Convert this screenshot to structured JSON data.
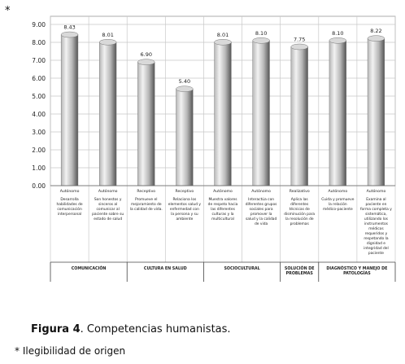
{
  "marker": "*",
  "chart_data": {
    "type": "bar",
    "ylim": [
      0,
      9
    ],
    "yticks": [
      "0.00",
      "1.00",
      "2.00",
      "3.00",
      "4.00",
      "5.00",
      "6.00",
      "7.00",
      "8.00",
      "9.00"
    ],
    "grid": true,
    "categories": [
      {
        "tipo": "Autónomo",
        "desc": [
          "Desarrolla",
          "habilidades de",
          "comunicación",
          "interpersonal"
        ]
      },
      {
        "tipo": "Autónomo",
        "desc": [
          "Son honestos y",
          "sinceros al",
          "comunicar al",
          "paciente sobre su",
          "estado de salud"
        ]
      },
      {
        "tipo": "Receptivo",
        "desc": [
          "Promueve el",
          "mejoramiento de",
          "la calidad de vida."
        ]
      },
      {
        "tipo": "Receptivo",
        "desc": [
          "Relaciona los",
          "elementos salud y",
          "enfermedad con",
          "la persona y su",
          "ambiente"
        ]
      },
      {
        "tipo": "Autónomo",
        "desc": [
          "Muestra valores",
          "de respeto hacia",
          "las diferentes",
          "culturas y la",
          "multicultural"
        ]
      },
      {
        "tipo": "Autónomo",
        "desc": [
          "Interactúa con",
          "diferentes grupos",
          "sociales para",
          "promover la",
          "salud y la calidad",
          "de vida"
        ]
      },
      {
        "tipo": "Realizativo",
        "desc": [
          "Aplica las",
          "diferentes",
          "técnicas de",
          "disminución para",
          "la resolución de",
          "problemas"
        ]
      },
      {
        "tipo": "Autónomo",
        "desc": [
          "Cuida y promueve",
          "la relación",
          "médico-paciente"
        ]
      },
      {
        "tipo": "Autónomo",
        "desc": [
          "Examina al",
          "paciente en",
          "forma completa y",
          "sistemática,",
          "utilizando los",
          "instrumentos",
          "médicos",
          "requeridos y",
          "respetando la",
          "dignidad e",
          "integridad del",
          "paciente"
        ]
      }
    ],
    "values": [
      8.43,
      8.01,
      6.9,
      5.4,
      8.01,
      8.1,
      7.75,
      8.1,
      8.22
    ],
    "value_labels": [
      "8.43",
      "8.01",
      "6.90",
      "5.40",
      "8.01",
      "8.10",
      "7.75",
      "8.10",
      "8.22"
    ],
    "groups": [
      {
        "label": [
          "COMUNICACIÓN"
        ],
        "span": [
          0,
          1
        ]
      },
      {
        "label": [
          "CULTURA EN SALUD"
        ],
        "span": [
          2,
          3
        ]
      },
      {
        "label": [
          "SOCIOCULTURAL"
        ],
        "span": [
          4,
          5
        ]
      },
      {
        "label": [
          "SOLUCIÓN DE",
          "PROBLEMAS"
        ],
        "span": [
          6,
          6
        ]
      },
      {
        "label": [
          "DIAGNÓSTICO Y MANEJO DE",
          "PATOLOGÍAS"
        ],
        "span": [
          7,
          8
        ]
      }
    ],
    "colors": {
      "bar_light": "#f2f2f2",
      "bar_mid": "#b8b8b8",
      "bar_dark": "#555555",
      "grid": "#c8c8c8",
      "frame": "#999999",
      "text": "#222222"
    }
  },
  "caption": {
    "figure_label": "Figura 4",
    "text": ". Competencias humanistas."
  },
  "footnote": "* Ilegibilidad de origen"
}
